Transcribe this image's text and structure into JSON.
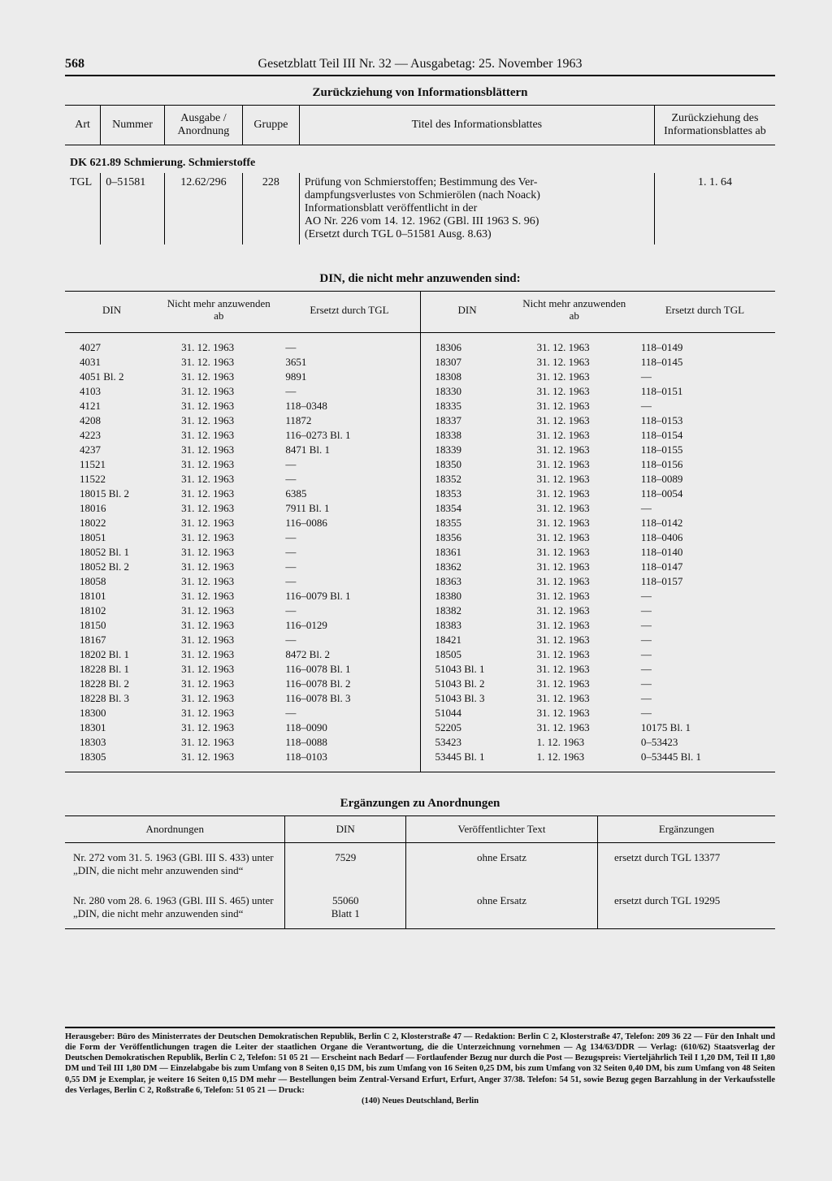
{
  "header": {
    "page_number": "568",
    "running_title": "Gesetzblatt Teil III Nr. 32 — Ausgabetag: 25. November 1963"
  },
  "section1": {
    "title": "Zurückziehung von Informationsblättern",
    "columns": {
      "art": "Art",
      "nummer": "Nummer",
      "ausgabe": "Ausgabe / Anordnung",
      "gruppe": "Gruppe",
      "titel": "Titel des Informationsblattes",
      "zurueck": "Zurückziehung des Informations­blattes ab"
    },
    "category": "DK 621.89 Schmierung. Schmierstoffe",
    "row": {
      "art": "TGL",
      "nummer": "0–51581",
      "ausgabe": "12.62/296",
      "gruppe": "228",
      "titel_l1": "Prüfung von Schmierstoffen; Bestimmung des Ver-",
      "titel_l2": "dampfungsverlustes von Schmierölen (nach Noack)",
      "titel_l3": "Informationsblatt veröffentlicht in der",
      "titel_l4": "AO Nr. 226 vom 14. 12. 1962 (GBl. III 1963 S. 96)",
      "titel_l5": "(Ersetzt durch TGL 0–51581 Ausg. 8.63)",
      "datum": "1. 1. 64"
    }
  },
  "section2": {
    "title": "DIN, die nicht mehr anzuwenden sind:",
    "columns": {
      "din": "DIN",
      "ab": "Nicht mehr anzuwenden ab",
      "ersetzt": "Ersetzt durch TGL"
    },
    "left": [
      {
        "din": "4027",
        "ab": "31. 12. 1963",
        "e": "—"
      },
      {
        "din": "4031",
        "ab": "31. 12. 1963",
        "e": "3651"
      },
      {
        "din": "4051 Bl. 2",
        "ab": "31. 12. 1963",
        "e": "9891"
      },
      {
        "din": "4103",
        "ab": "31. 12. 1963",
        "e": "—"
      },
      {
        "din": "4121",
        "ab": "31. 12. 1963",
        "e": "118–0348"
      },
      {
        "din": "4208",
        "ab": "31. 12. 1963",
        "e": "11872"
      },
      {
        "din": "4223",
        "ab": "31. 12. 1963",
        "e": "116–0273 Bl. 1"
      },
      {
        "din": "4237",
        "ab": "31. 12. 1963",
        "e": "8471 Bl. 1"
      },
      {
        "din": "11521",
        "ab": "31. 12. 1963",
        "e": "—"
      },
      {
        "din": "11522",
        "ab": "31. 12. 1963",
        "e": "—"
      },
      {
        "din": "18015 Bl. 2",
        "ab": "31. 12. 1963",
        "e": "6385"
      },
      {
        "din": "18016",
        "ab": "31. 12. 1963",
        "e": "7911 Bl. 1"
      },
      {
        "din": "18022",
        "ab": "31. 12. 1963",
        "e": "116–0086"
      },
      {
        "din": "18051",
        "ab": "31. 12. 1963",
        "e": "—"
      },
      {
        "din": "18052 Bl. 1",
        "ab": "31. 12. 1963",
        "e": "—"
      },
      {
        "din": "18052 Bl. 2",
        "ab": "31. 12. 1963",
        "e": "—"
      },
      {
        "din": "18058",
        "ab": "31. 12. 1963",
        "e": "—"
      },
      {
        "din": "18101",
        "ab": "31. 12. 1963",
        "e": "116–0079 Bl. 1"
      },
      {
        "din": "18102",
        "ab": "31. 12. 1963",
        "e": "—"
      },
      {
        "din": "18150",
        "ab": "31. 12. 1963",
        "e": "116–0129"
      },
      {
        "din": "18167",
        "ab": "31. 12. 1963",
        "e": "—"
      },
      {
        "din": "18202 Bl. 1",
        "ab": "31. 12. 1963",
        "e": "8472 Bl. 2"
      },
      {
        "din": "18228 Bl. 1",
        "ab": "31. 12. 1963",
        "e": "116–0078 Bl. 1"
      },
      {
        "din": "18228 Bl. 2",
        "ab": "31. 12. 1963",
        "e": "116–0078 Bl. 2"
      },
      {
        "din": "18228 Bl. 3",
        "ab": "31. 12. 1963",
        "e": "116–0078 Bl. 3"
      },
      {
        "din": "18300",
        "ab": "31. 12. 1963",
        "e": "—"
      },
      {
        "din": "18301",
        "ab": "31. 12. 1963",
        "e": "118–0090"
      },
      {
        "din": "18303",
        "ab": "31. 12. 1963",
        "e": "118–0088"
      },
      {
        "din": "18305",
        "ab": "31. 12. 1963",
        "e": "118–0103"
      }
    ],
    "right": [
      {
        "din": "18306",
        "ab": "31. 12. 1963",
        "e": "118–0149"
      },
      {
        "din": "18307",
        "ab": "31. 12. 1963",
        "e": "118–0145"
      },
      {
        "din": "18308",
        "ab": "31. 12. 1963",
        "e": "—"
      },
      {
        "din": "18330",
        "ab": "31. 12. 1963",
        "e": "118–0151"
      },
      {
        "din": "18335",
        "ab": "31. 12. 1963",
        "e": "—"
      },
      {
        "din": "18337",
        "ab": "31. 12. 1963",
        "e": "118–0153"
      },
      {
        "din": "18338",
        "ab": "31. 12. 1963",
        "e": "118–0154"
      },
      {
        "din": "18339",
        "ab": "31. 12. 1963",
        "e": "118–0155"
      },
      {
        "din": "18350",
        "ab": "31. 12. 1963",
        "e": "118–0156"
      },
      {
        "din": "18352",
        "ab": "31. 12. 1963",
        "e": "118–0089"
      },
      {
        "din": "18353",
        "ab": "31. 12. 1963",
        "e": "118–0054"
      },
      {
        "din": "18354",
        "ab": "31. 12. 1963",
        "e": "—"
      },
      {
        "din": "18355",
        "ab": "31. 12. 1963",
        "e": "118–0142"
      },
      {
        "din": "18356",
        "ab": "31. 12. 1963",
        "e": "118–0406"
      },
      {
        "din": "18361",
        "ab": "31. 12. 1963",
        "e": "118–0140"
      },
      {
        "din": "18362",
        "ab": "31. 12. 1963",
        "e": "118–0147"
      },
      {
        "din": "18363",
        "ab": "31. 12. 1963",
        "e": "118–0157"
      },
      {
        "din": "18380",
        "ab": "31. 12. 1963",
        "e": "—"
      },
      {
        "din": "18382",
        "ab": "31. 12. 1963",
        "e": "—"
      },
      {
        "din": "18383",
        "ab": "31. 12. 1963",
        "e": "—"
      },
      {
        "din": "18421",
        "ab": "31. 12. 1963",
        "e": "—"
      },
      {
        "din": "18505",
        "ab": "31. 12. 1963",
        "e": "—"
      },
      {
        "din": "51043 Bl. 1",
        "ab": "31. 12. 1963",
        "e": "—"
      },
      {
        "din": "51043 Bl. 2",
        "ab": "31. 12. 1963",
        "e": "—"
      },
      {
        "din": "51043 Bl. 3",
        "ab": "31. 12. 1963",
        "e": "—"
      },
      {
        "din": "51044",
        "ab": "31. 12. 1963",
        "e": "—"
      },
      {
        "din": "52205",
        "ab": "31. 12. 1963",
        "e": "10175 Bl. 1"
      },
      {
        "din": "53423",
        "ab": "1. 12. 1963",
        "e": "0–53423"
      },
      {
        "din": "53445 Bl. 1",
        "ab": "1. 12. 1963",
        "e": "0–53445 Bl. 1"
      }
    ]
  },
  "section3": {
    "title": "Ergänzungen zu Anordnungen",
    "columns": {
      "anord": "Anordnungen",
      "din": "DIN",
      "vtext": "Veröffentlichter Text",
      "erg": "Ergänzungen"
    },
    "rows": [
      {
        "anord": "Nr. 272 vom 31. 5. 1963 (GBl. III S. 433) unter „DIN, die nicht mehr anzuwenden sind“",
        "din": "7529",
        "vtext": "ohne Ersatz",
        "erg": "ersetzt durch TGL 13377"
      },
      {
        "anord": "Nr. 280 vom 28. 6. 1963 (GBl. III S. 465) unter „DIN, die nicht mehr anzuwenden sind“",
        "din": "55060\nBlatt 1",
        "vtext": "ohne Ersatz",
        "erg": "ersetzt durch TGL 19295"
      }
    ]
  },
  "imprint": {
    "text": "Herausgeber: Büro des Ministerrates der Deutschen Demokratischen Republik, Berlin C 2, Klosterstraße 47 — Redaktion: Berlin C 2, Klosterstraße 47, Telefon: 209 36 22 — Für den Inhalt und die Form der Veröffentlichungen tragen die Leiter der staatlichen Organe die Verantwortung, die die Unterzeichnung vornehmen — Ag 134/63/DDR — Verlag: (610/62) Staatsverlag der Deutschen Demokratischen Republik, Berlin C 2, Telefon: 51 05 21 — Erscheint nach Bedarf — Fortlaufender Bezug nur durch die Post — Bezugspreis: Vierteljährlich Teil I 1,20 DM, Teil II 1,80 DM und Teil III 1,80 DM — Einzelabgabe bis zum Umfang von 8 Seiten 0,15 DM, bis zum Umfang von 16 Seiten 0,25 DM, bis zum Umfang von 32 Seiten 0,40 DM, bis zum Umfang von 48 Seiten 0,55 DM je Exemplar, je weitere 16 Seiten 0,15 DM mehr — Bestellungen beim Zentral-Versand Erfurt, Erfurt, Anger 37/38. Telefon: 54 51, sowie Bezug gegen Barzahlung in der Verkaufsstelle des Verlages, Berlin C 2, Roßstraße 6, Telefon: 51 05 21 — Druck:",
    "last": "(140) Neues Deutschland, Berlin"
  }
}
